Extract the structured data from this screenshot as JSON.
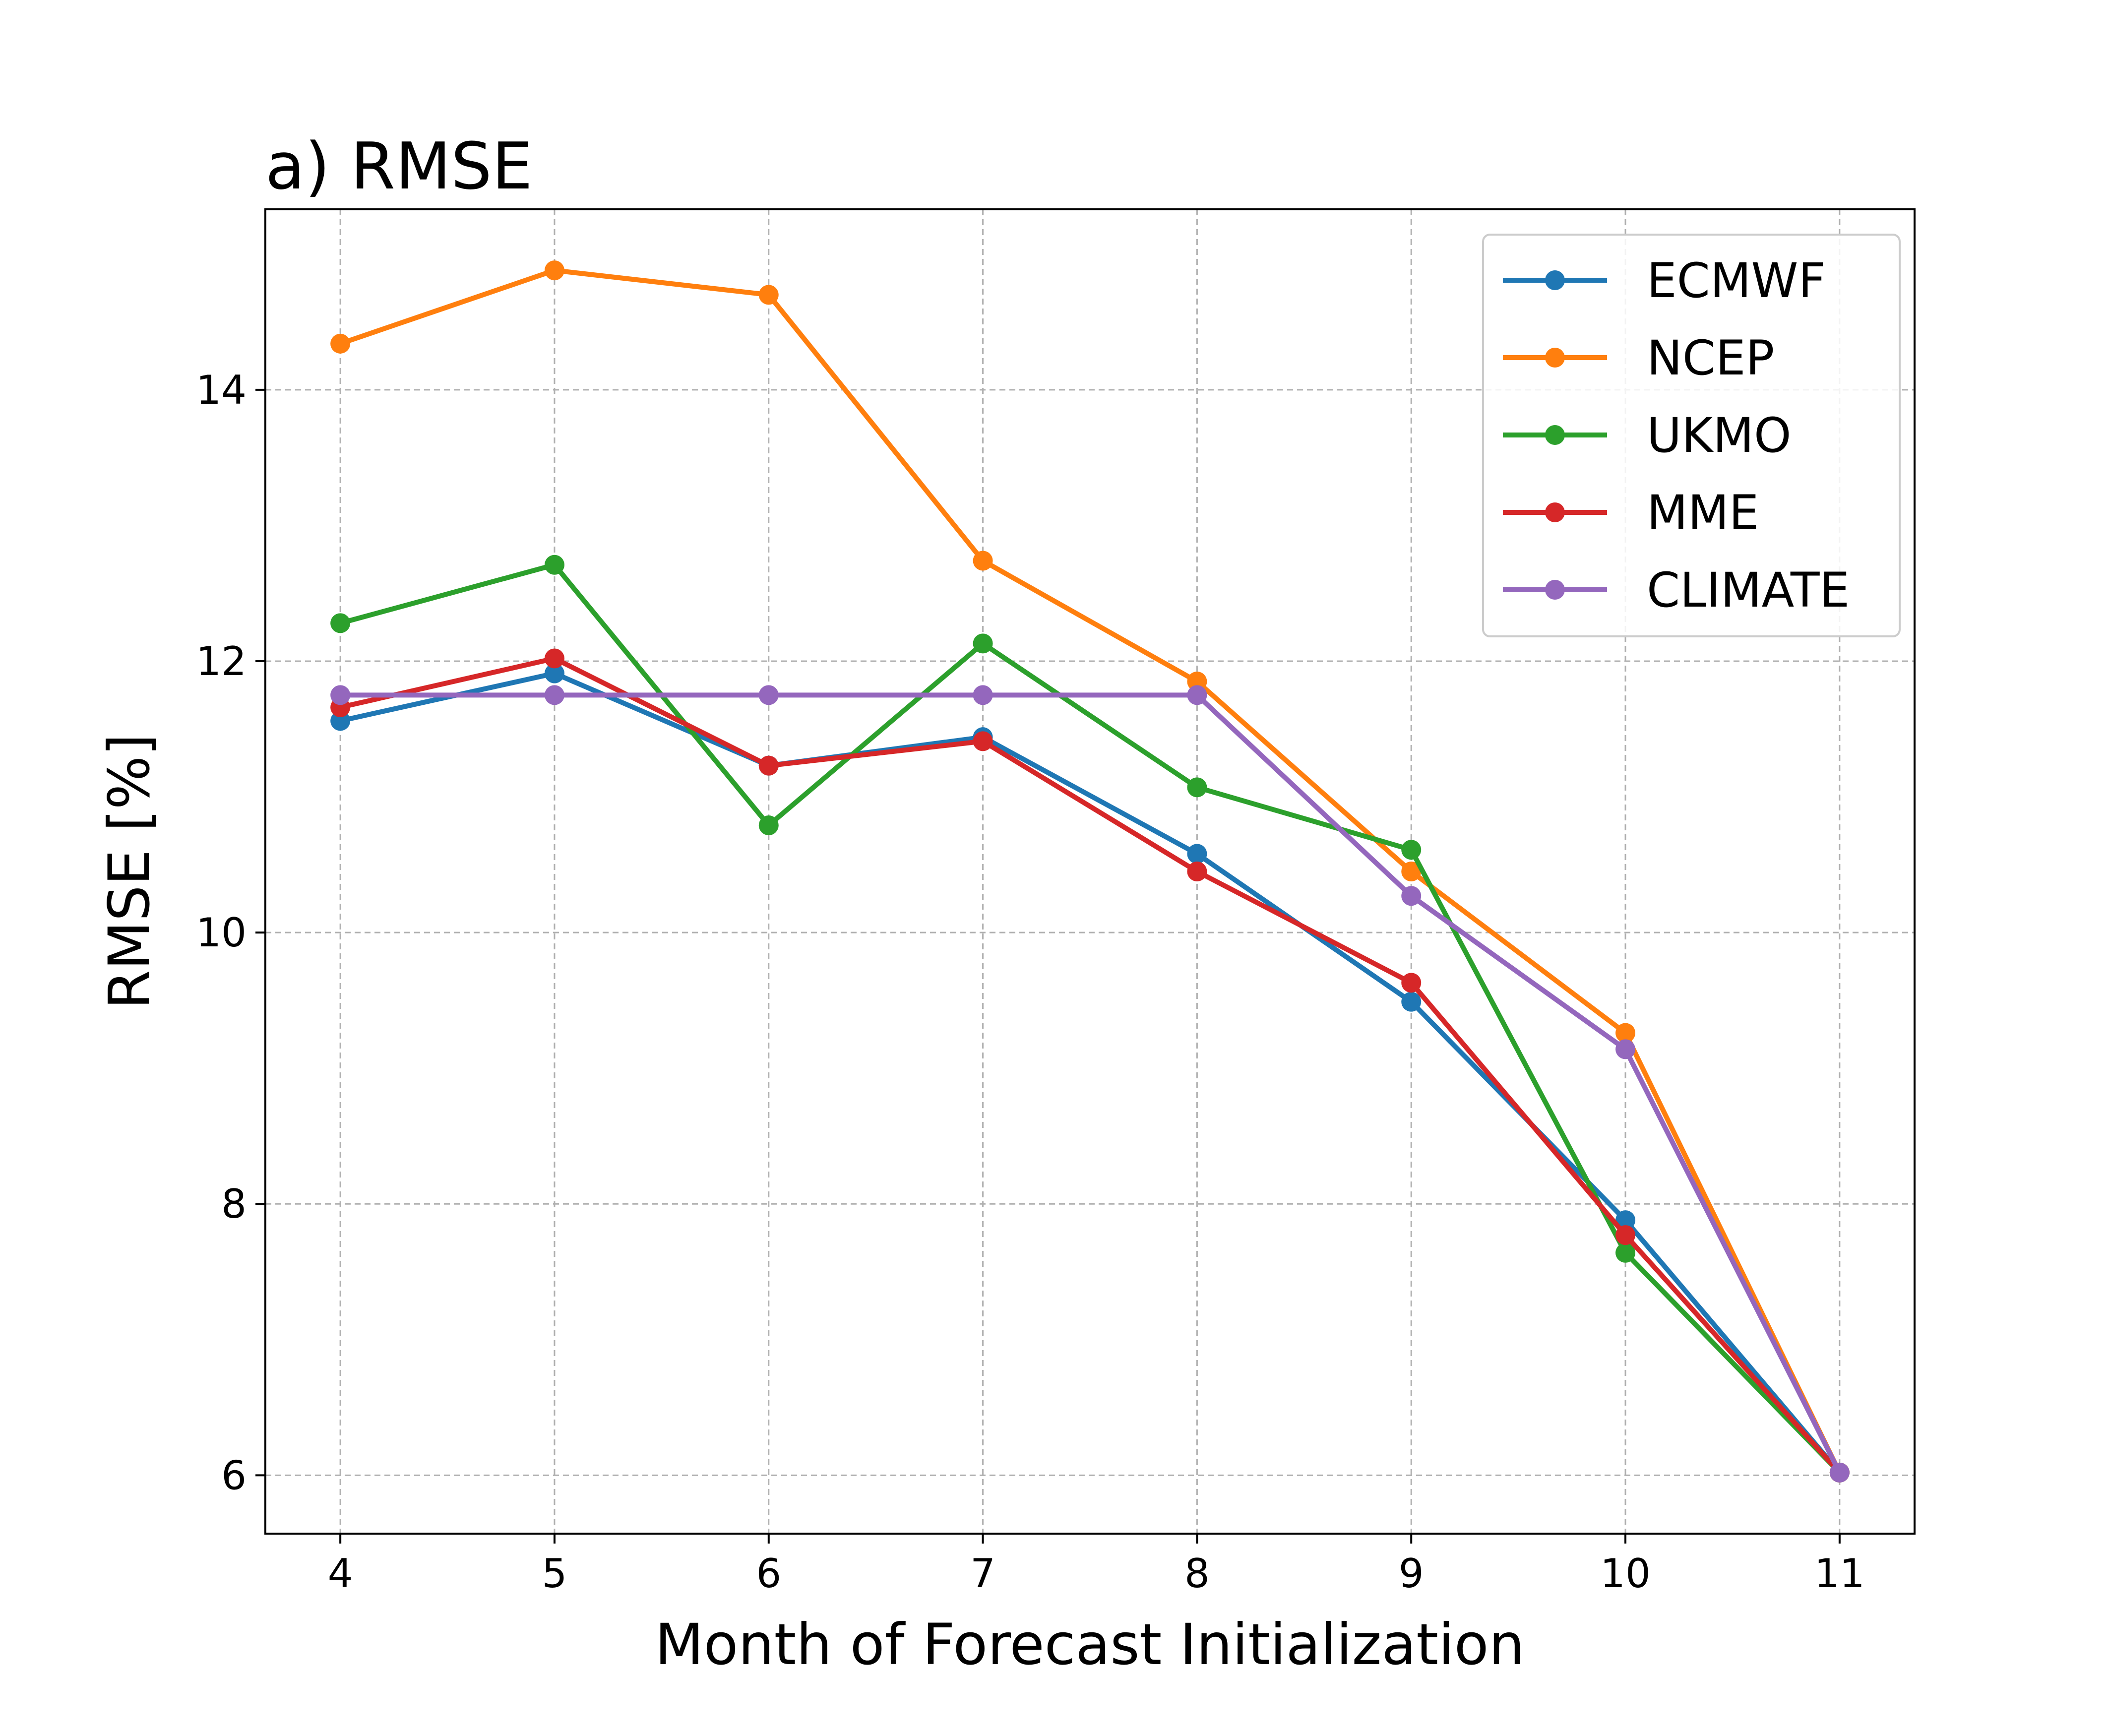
{
  "chart_data": {
    "type": "line",
    "title": "a) RMSE",
    "xlabel": "Month of Forecast Initialization",
    "ylabel": "RMSE [%]",
    "x": [
      4,
      5,
      6,
      7,
      8,
      9,
      10,
      11
    ],
    "xticks": [
      "4",
      "5",
      "6",
      "7",
      "8",
      "9",
      "10",
      "11"
    ],
    "yticks": [
      "6",
      "8",
      "10",
      "12",
      "14"
    ],
    "xlim": [
      3.65,
      11.35
    ],
    "ylim": [
      5.57,
      15.33
    ],
    "grid": true,
    "legend_position": "top-right",
    "series": [
      {
        "name": "ECMWF",
        "color": "#1f77b4",
        "values": [
          11.56,
          11.91,
          11.23,
          11.44,
          10.58,
          9.49,
          7.88,
          6.02
        ]
      },
      {
        "name": "NCEP",
        "color": "#ff7f0e",
        "values": [
          14.34,
          14.88,
          14.7,
          12.74,
          11.85,
          10.45,
          9.26,
          6.02
        ]
      },
      {
        "name": "UKMO",
        "color": "#2ca02c",
        "values": [
          12.28,
          12.71,
          10.79,
          12.13,
          11.07,
          10.61,
          7.64,
          6.02
        ]
      },
      {
        "name": "MME",
        "color": "#d62728",
        "values": [
          11.66,
          12.02,
          11.23,
          11.41,
          10.45,
          9.63,
          7.77,
          6.02
        ]
      },
      {
        "name": "CLIMATE",
        "color": "#9467bd",
        "values": [
          11.75,
          11.75,
          11.75,
          11.75,
          11.75,
          10.27,
          9.14,
          6.02
        ]
      }
    ]
  }
}
